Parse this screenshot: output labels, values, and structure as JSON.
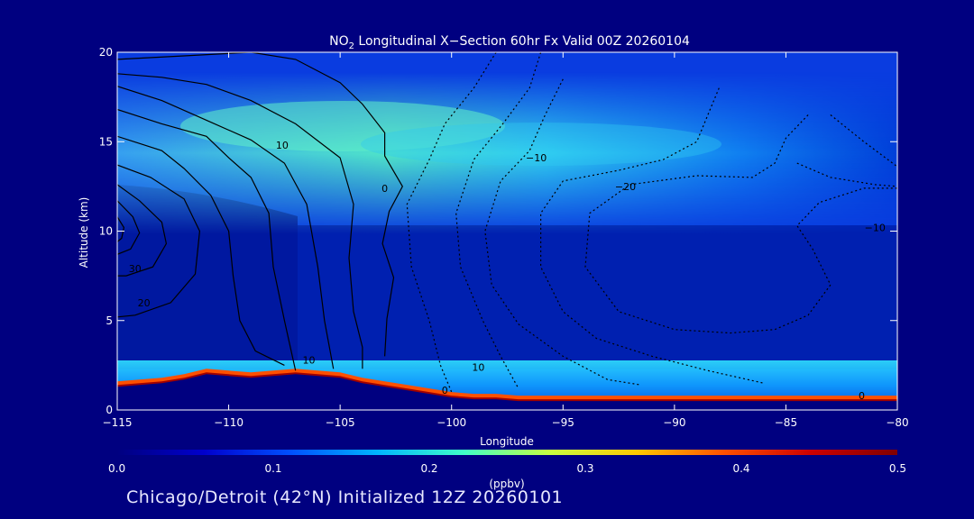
{
  "chart_data": {
    "type": "heatmap",
    "title_prefix": "NO",
    "title_sub": "2",
    "title_rest": " Longitudinal X−Section 60hr  Fx Valid 00Z 20260104",
    "xlabel": "Longitude",
    "ylabel": "Altitude (km)",
    "xlim": [
      -115,
      -80
    ],
    "ylim": [
      0,
      20
    ],
    "x_ticks": [
      -115,
      -110,
      -105,
      -100,
      -95,
      -90,
      -85,
      -80
    ],
    "x_tick_labels": [
      "−115",
      "−110",
      "−105",
      "−100",
      "−95",
      "−90",
      "−85",
      "−80"
    ],
    "y_ticks": [
      0,
      5,
      10,
      15,
      20
    ],
    "y_tick_labels": [
      "0",
      "5",
      "10",
      "15",
      "20"
    ],
    "colorbar": {
      "label": "(ppbv)",
      "range": [
        0.0,
        0.5
      ],
      "ticks": [
        0.0,
        0.1,
        0.2,
        0.3,
        0.4,
        0.5
      ],
      "tick_labels": [
        "0.0",
        "0.1",
        "0.2",
        "0.3",
        "0.4",
        "0.5"
      ],
      "colors": [
        "#000080",
        "#0000cd",
        "#0050ff",
        "#00b4ff",
        "#40ffc8",
        "#c8ff40",
        "#ffc800",
        "#ff5000",
        "#cd0000",
        "#800000"
      ]
    },
    "terrain": {
      "lon": [
        -115,
        -113,
        -112,
        -111,
        -110,
        -109,
        -108,
        -107,
        -106,
        -105,
        -104,
        -103,
        -102,
        -101,
        -100,
        -99,
        -98,
        -97,
        -95,
        -92,
        -90,
        -88,
        -85,
        -83,
        -80
      ],
      "alt": [
        1.3,
        1.5,
        1.7,
        2.0,
        1.9,
        1.8,
        1.9,
        2.0,
        1.9,
        1.8,
        1.5,
        1.3,
        1.1,
        0.9,
        0.7,
        0.6,
        0.6,
        0.5,
        0.5,
        0.5,
        0.5,
        0.5,
        0.5,
        0.5,
        0.5
      ]
    },
    "contours": {
      "solid": [
        [
          [
            -115,
            19.6
          ],
          [
            -112,
            19.8
          ],
          [
            -109,
            20
          ],
          [
            -107,
            19.6
          ],
          [
            -105,
            18.3
          ],
          [
            -104,
            17.1
          ],
          [
            -103,
            15.5
          ],
          [
            -103,
            14.2
          ],
          [
            -102.2,
            12.5
          ],
          [
            -102.8,
            11.1
          ],
          [
            -103.1,
            9.3
          ],
          [
            -102.6,
            7.4
          ],
          [
            -102.9,
            5.1
          ],
          [
            -103,
            3
          ]
        ],
        [
          [
            -115,
            18.8
          ],
          [
            -113,
            18.6
          ],
          [
            -111,
            18.2
          ],
          [
            -109,
            17.3
          ],
          [
            -107,
            16
          ],
          [
            -105,
            14.1
          ],
          [
            -104.4,
            11.5
          ],
          [
            -104.6,
            8.5
          ],
          [
            -104.4,
            5.5
          ],
          [
            -104,
            3.5
          ],
          [
            -104,
            2.3
          ]
        ],
        [
          [
            -115,
            18.1
          ],
          [
            -113,
            17.3
          ],
          [
            -111,
            16.2
          ],
          [
            -109,
            15.1
          ],
          [
            -107.5,
            13.8
          ],
          [
            -106.5,
            11.5
          ],
          [
            -106,
            8
          ],
          [
            -105.7,
            5
          ],
          [
            -105.3,
            2.3
          ]
        ],
        [
          [
            -115,
            16.8
          ],
          [
            -113,
            16
          ],
          [
            -111,
            15.3
          ],
          [
            -110,
            14.1
          ],
          [
            -109,
            13
          ],
          [
            -108.2,
            11
          ],
          [
            -108,
            8
          ],
          [
            -107.5,
            5
          ],
          [
            -107,
            2.2
          ]
        ],
        [
          [
            -115,
            15.3
          ],
          [
            -113,
            14.5
          ],
          [
            -112,
            13.5
          ],
          [
            -110.8,
            12
          ],
          [
            -110,
            10
          ],
          [
            -109.8,
            7.5
          ],
          [
            -109.5,
            5
          ],
          [
            -108.8,
            3.3
          ],
          [
            -107.5,
            2.5
          ]
        ],
        [
          [
            -115,
            13.7
          ],
          [
            -113.5,
            13
          ],
          [
            -112,
            11.8
          ],
          [
            -111.3,
            10
          ],
          [
            -111.5,
            7.6
          ],
          [
            -112.6,
            6
          ],
          [
            -114.2,
            5.3
          ],
          [
            -115,
            5.2
          ]
        ],
        [
          [
            -115,
            12.6
          ],
          [
            -114,
            11.7
          ],
          [
            -113,
            10.5
          ],
          [
            -112.8,
            9.3
          ],
          [
            -113.4,
            8
          ],
          [
            -114.6,
            7.5
          ],
          [
            -115,
            7.5
          ]
        ],
        [
          [
            -115,
            11.7
          ],
          [
            -114.3,
            10.8
          ],
          [
            -114,
            9.9
          ],
          [
            -114.4,
            9
          ],
          [
            -115,
            8.7
          ]
        ],
        [
          [
            -115,
            10.8
          ],
          [
            -114.7,
            10.2
          ],
          [
            -114.8,
            9.6
          ],
          [
            -115,
            9.4
          ]
        ]
      ],
      "dotted": [
        [
          [
            -98,
            20
          ],
          [
            -99,
            18
          ],
          [
            -100.3,
            16
          ],
          [
            -101,
            14
          ],
          [
            -102,
            11.5
          ],
          [
            -101.8,
            8
          ],
          [
            -101,
            5
          ],
          [
            -100.5,
            2.5
          ],
          [
            -100,
            1
          ]
        ],
        [
          [
            -96,
            20
          ],
          [
            -96.5,
            18
          ],
          [
            -97.7,
            16
          ],
          [
            -99,
            14
          ],
          [
            -99.8,
            11
          ],
          [
            -99.6,
            8
          ],
          [
            -98.6,
            5
          ],
          [
            -97.8,
            3
          ],
          [
            -97,
            1.2
          ]
        ],
        [
          [
            -95,
            18.5
          ],
          [
            -95.8,
            16.5
          ],
          [
            -96.5,
            14.5
          ],
          [
            -97.8,
            12.8
          ],
          [
            -98.5,
            10
          ],
          [
            -98.2,
            7
          ],
          [
            -97,
            4.8
          ],
          [
            -95,
            3
          ],
          [
            -93,
            1.7
          ],
          [
            -91.5,
            1.4
          ]
        ],
        [
          [
            -88,
            18
          ],
          [
            -88.5,
            16.5
          ],
          [
            -89,
            15
          ],
          [
            -90.5,
            14
          ],
          [
            -92.5,
            13.4
          ],
          [
            -95,
            12.8
          ],
          [
            -96,
            11
          ],
          [
            -96,
            8
          ],
          [
            -95,
            5.5
          ],
          [
            -93.5,
            4
          ],
          [
            -91,
            3
          ],
          [
            -88.5,
            2.2
          ],
          [
            -86,
            1.5
          ]
        ],
        [
          [
            -84,
            16.5
          ],
          [
            -85,
            15.2
          ],
          [
            -85.5,
            13.8
          ],
          [
            -86.5,
            13
          ],
          [
            -89,
            13.1
          ],
          [
            -92,
            12.6
          ],
          [
            -93.8,
            11
          ],
          [
            -94,
            8
          ],
          [
            -92.5,
            5.5
          ],
          [
            -90,
            4.5
          ],
          [
            -87.5,
            4.3
          ],
          [
            -85.5,
            4.5
          ],
          [
            -84,
            5.3
          ],
          [
            -83,
            7
          ],
          [
            -83.8,
            9
          ],
          [
            -84.5,
            10.3
          ],
          [
            -83.5,
            11.6
          ],
          [
            -81.5,
            12.4
          ],
          [
            -80,
            12.4
          ]
        ],
        [
          [
            -83,
            16.5
          ],
          [
            -81.5,
            15
          ],
          [
            -80,
            13.6
          ]
        ],
        [
          [
            -84.5,
            13.8
          ],
          [
            -83,
            13
          ],
          [
            -81,
            12.6
          ],
          [
            -80,
            12.5
          ]
        ]
      ]
    },
    "contour_labels": [
      {
        "text": "10",
        "lon": -107.6,
        "alt": 14.6
      },
      {
        "text": "0",
        "lon": -103,
        "alt": 12.2
      },
      {
        "text": "−10",
        "lon": -96.2,
        "alt": 13.9
      },
      {
        "text": "−20",
        "lon": -92.2,
        "alt": 12.3
      },
      {
        "text": "−10",
        "lon": -81,
        "alt": 10
      },
      {
        "text": "30",
        "lon": -114.2,
        "alt": 7.7
      },
      {
        "text": "20",
        "lon": -113.8,
        "alt": 5.8
      },
      {
        "text": "10",
        "lon": -106.4,
        "alt": 2.6
      },
      {
        "text": "10",
        "lon": -98.8,
        "alt": 2.2
      },
      {
        "text": "0",
        "lon": -100.3,
        "alt": 0.9
      },
      {
        "text": "0",
        "lon": -81.6,
        "alt": 0.6
      }
    ]
  },
  "footer": "Chicago/Detroit (42°N) Initialized 12Z 20260101"
}
